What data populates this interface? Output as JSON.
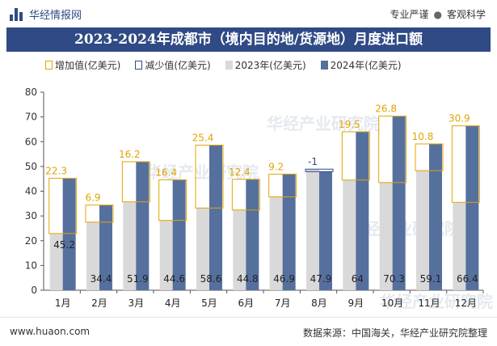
{
  "header": {
    "brand": "华经情报网",
    "right_items": [
      "专业严谨",
      "客观科学"
    ],
    "separator": "●"
  },
  "title": "2023-2024年成都市（境内目的地/货源地）月度进口额",
  "legend": {
    "increase": "增加值(亿美元)",
    "decrease": "减少值(亿美元)",
    "y2023": "2023年(亿美元)",
    "y2024": "2024年(亿美元)"
  },
  "colors": {
    "bar2023": "#d9d9d9",
    "bar2024": "#56709e",
    "increase": "#e0a500",
    "decrease": "#2f4a84",
    "title_bg": "#2f4a84"
  },
  "chart_data": {
    "type": "bar",
    "categories": [
      "1月",
      "2月",
      "3月",
      "4月",
      "5月",
      "6月",
      "7月",
      "8月",
      "9月",
      "10月",
      "11月",
      "12月"
    ],
    "series": [
      {
        "name": "2023年(亿美元)",
        "values": [
          22.9,
          27.5,
          35.7,
          28.2,
          33.2,
          32.4,
          37.7,
          48.9,
          44.5,
          43.5,
          48.3,
          35.5
        ]
      },
      {
        "name": "2024年(亿美元)",
        "values": [
          45.2,
          34.4,
          51.9,
          44.6,
          58.6,
          44.8,
          46.9,
          47.9,
          64,
          70.3,
          59.1,
          66.4
        ]
      }
    ],
    "change_labels": [
      "22.3",
      "6.9",
      "16.2",
      "16.4",
      "25.4",
      "12.4",
      "9.2",
      "-1",
      "19.5",
      "26.8",
      "10.8",
      "30.9"
    ],
    "value_labels": [
      "45.2",
      "34.4",
      "51.9",
      "44.6",
      "58.6",
      "44.8",
      "46.9",
      "47.9",
      "64",
      "70.3",
      "59.1",
      "66.4"
    ],
    "ylim": [
      0,
      80
    ],
    "yticks": [
      0,
      10,
      20,
      30,
      40,
      50,
      60,
      70,
      80
    ],
    "xlabel": "",
    "ylabel": "",
    "grid": false,
    "legend_position": "top"
  },
  "watermark": "华经产业研究院",
  "footer": {
    "website": "www.huaon.com",
    "source": "数据来源：中国海关，华经产业研究院整理"
  }
}
